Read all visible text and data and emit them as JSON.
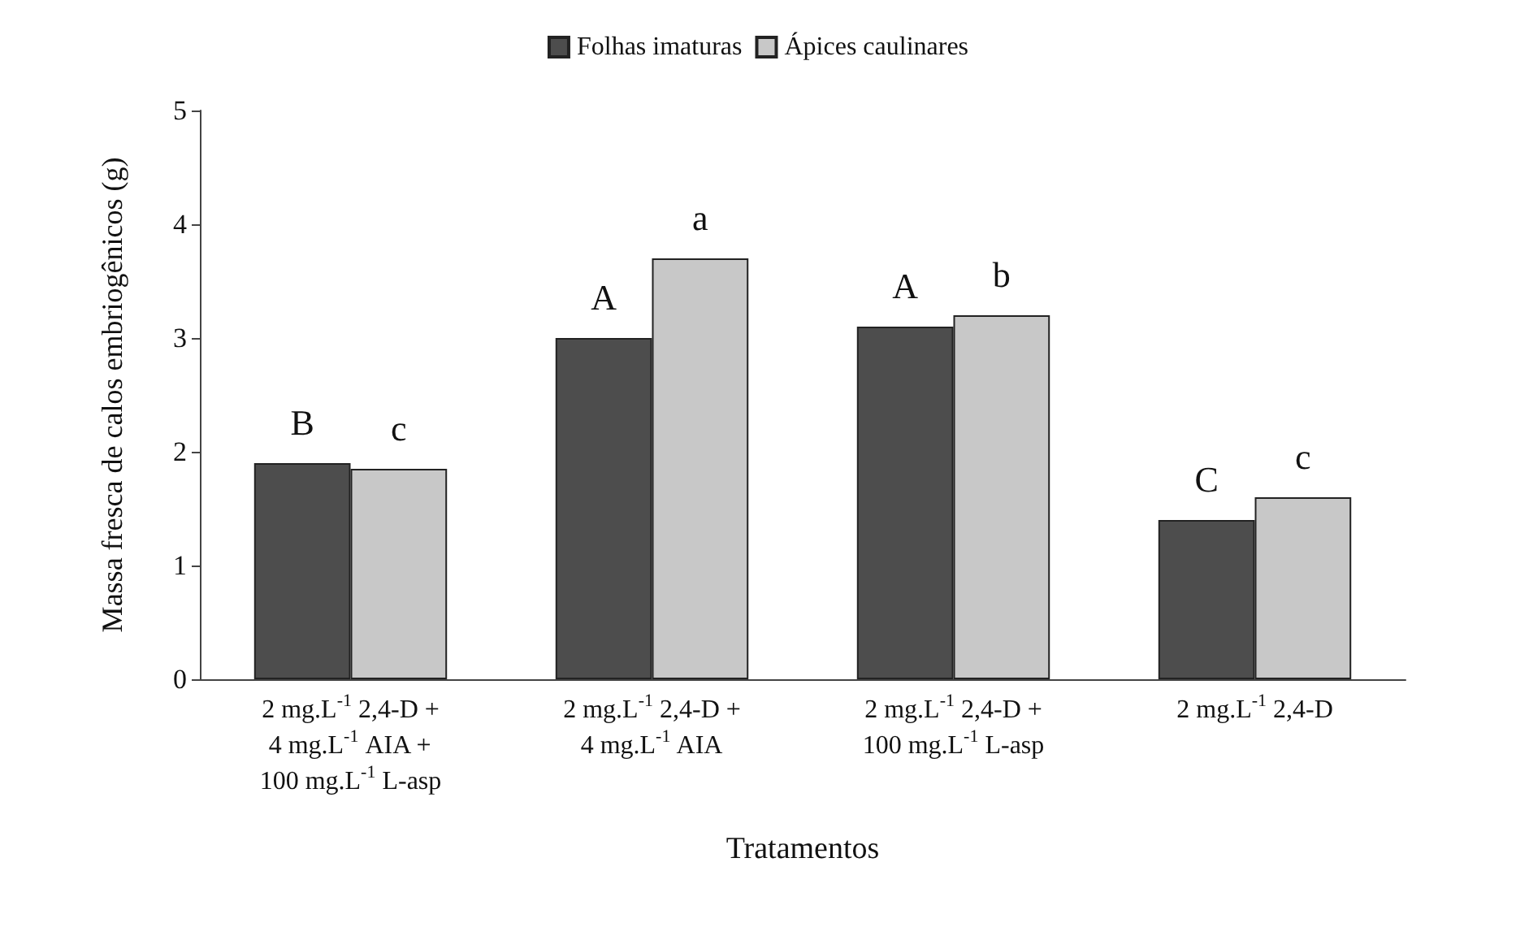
{
  "chart_data": {
    "type": "bar",
    "xlabel": "Tratamentos",
    "ylabel": "Massa fresca de calos embriogênicos (g)",
    "categories": [
      "2 mg.L$^{-1}$ 2,4-D +\n4 mg.L$^{-1}$ AIA +\n100 mg.L$^{-1}$ L-asp",
      "2 mg.L$^{-1}$ 2,4-D +\n4 mg.L$^{-1}$ AIA",
      "2 mg.L$^{-1}$ 2,4-D +\n100 mg.L$^{-1}$ L-asp",
      "2 mg.L$^{-1}$ 2,4-D"
    ],
    "series": [
      {
        "name": "Folhas imaturas",
        "color": "#4d4d4d",
        "values": [
          1.9,
          3.0,
          3.1,
          1.4
        ],
        "value_labels": [
          "B",
          "A",
          "A",
          "C"
        ]
      },
      {
        "name": "Ápices caulinares",
        "color": "#c8c8c8",
        "values": [
          1.85,
          3.7,
          3.2,
          1.6
        ],
        "value_labels": [
          "c",
          "a",
          "b",
          "c"
        ]
      }
    ],
    "ylim": [
      0,
      5
    ],
    "yticks": [
      0,
      1,
      2,
      3,
      4,
      5
    ],
    "grid": false,
    "legend": "top"
  }
}
